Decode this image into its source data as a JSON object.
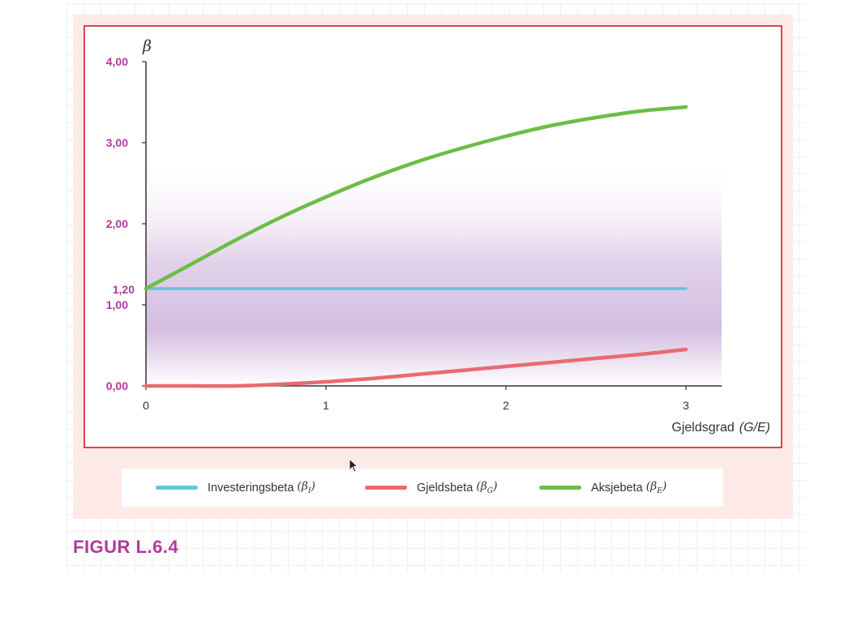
{
  "figure_label": "FIGUR L.6.4",
  "colors": {
    "investeringsbeta": "#5ec7dc",
    "gjeldsbeta": "#e86b70",
    "aksjebeta": "#6cbd45",
    "tick_labels": "#b2399b",
    "frame": "#d9454c"
  },
  "legend": [
    {
      "label": "Investeringsbeta",
      "symbol": "β",
      "sub": "I"
    },
    {
      "label": "Gjeldsbeta",
      "symbol": "β",
      "sub": "G"
    },
    {
      "label": "Aksjebeta",
      "symbol": "β",
      "sub": "E"
    }
  ],
  "chart_data": {
    "type": "line",
    "ylabel": "β",
    "xlabel": "Gjeldsgrad",
    "xlabel_symbol": "(G/E)",
    "xlim": [
      0,
      3.2
    ],
    "ylim": [
      0,
      4
    ],
    "x_ticks": [
      "0",
      "1",
      "2",
      "3"
    ],
    "y_ticks": [
      "0,00",
      "1,00",
      "2,00",
      "3,00",
      "4,00"
    ],
    "y_extra_tick": "1,20",
    "grid": false,
    "legend_position": "bottom",
    "series": [
      {
        "name": "Investeringsbeta",
        "x": [
          0,
          0.5,
          1,
          1.5,
          2,
          2.5,
          3
        ],
        "y": [
          1.2,
          1.2,
          1.2,
          1.2,
          1.2,
          1.2,
          1.2
        ]
      },
      {
        "name": "Gjeldsbeta",
        "x": [
          0,
          0.25,
          0.5,
          0.75,
          1,
          1.25,
          1.5,
          1.75,
          2,
          2.25,
          2.5,
          2.75,
          3
        ],
        "y": [
          0,
          0,
          0,
          0.02,
          0.05,
          0.09,
          0.14,
          0.19,
          0.24,
          0.29,
          0.34,
          0.39,
          0.45
        ]
      },
      {
        "name": "Aksjebeta",
        "x": [
          0,
          0.25,
          0.5,
          0.75,
          1,
          1.25,
          1.5,
          1.75,
          2,
          2.25,
          2.5,
          2.75,
          3
        ],
        "y": [
          1.2,
          1.5,
          1.8,
          2.08,
          2.33,
          2.56,
          2.76,
          2.93,
          3.08,
          3.21,
          3.31,
          3.39,
          3.44
        ]
      }
    ]
  }
}
